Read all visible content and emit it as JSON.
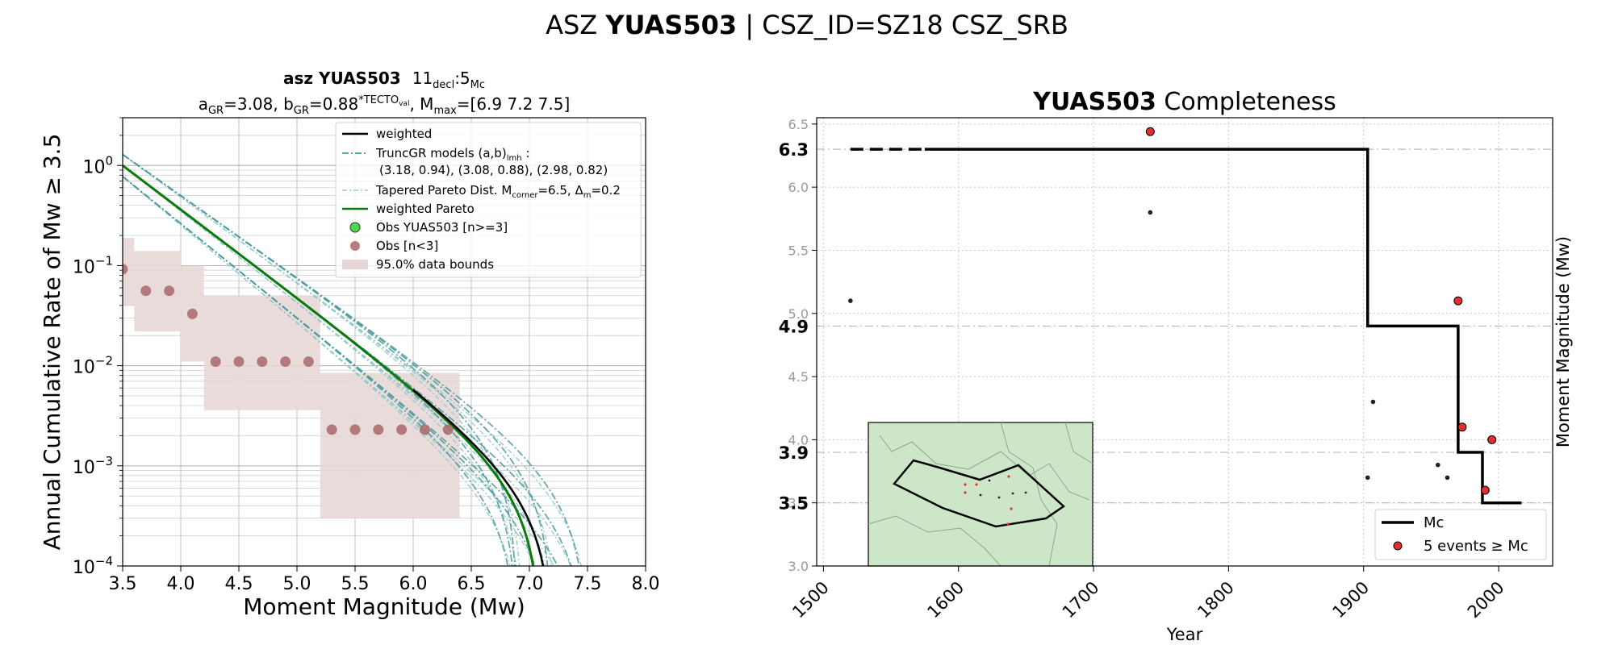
{
  "figure": {
    "title_prefix": "ASZ ",
    "title_bold": "YUAS503",
    "title_suffix": " | CSZ_ID=SZ18 CSZ_SRB"
  },
  "colors": {
    "weighted": "#000000",
    "trunc": "#4a9a9a",
    "tapered": "#90cbcb",
    "pareto": "#0a7a0a",
    "obs_ge3": "#4cd84c",
    "obs_lt3": "#a86868",
    "band": "#e8d6d6",
    "event_red": "#e03030",
    "map_fill": "#cde6c8",
    "map_border": "#8aa88a"
  },
  "chart_data": [
    {
      "type": "line",
      "title_bold": "asz YUAS503",
      "title_rest_main": "11",
      "title_rest_sub": "decl",
      "title_rest_mid": ":5",
      "title_rest_sub2": "Mc",
      "subtitle": "aGR=3.08,  bGR=0.88*TECTOval, Mmax=[6.9 7.2 7.5]",
      "xlabel": "Moment Magnitude (Mw)",
      "ylabel": "Annual Cumulative Rate of Mw  ≥  3.5",
      "xlim": [
        3.5,
        8.0
      ],
      "ylim": [
        0.0001,
        3
      ],
      "yscale": "log",
      "xticks": [
        "3.5",
        "4.0",
        "4.5",
        "5.0",
        "5.5",
        "6.0",
        "6.5",
        "7.0",
        "7.5",
        "8.0"
      ],
      "yticks": [
        {
          "base": "10",
          "exp": "0",
          "value": 1
        },
        {
          "base": "10",
          "exp": "−1",
          "value": 0.1
        },
        {
          "base": "10",
          "exp": "−2",
          "value": 0.01
        },
        {
          "base": "10",
          "exp": "−3",
          "value": 0.001
        },
        {
          "base": "10",
          "exp": "−4",
          "value": 0.0001
        }
      ],
      "legend": {
        "position": "top-right",
        "entries": [
          {
            "label": "weighted",
            "kind": "solid-black"
          },
          {
            "label": "TruncGR models (a,b)lmh :",
            "line2": "(3.18, 0.94), (3.08, 0.88), (2.98, 0.82)",
            "kind": "dashdot-teal"
          },
          {
            "label": "Tapered Pareto Dist. Mcorner=6.5, Δm=0.2",
            "kind": "dashdot-light"
          },
          {
            "label": "weighted Pareto",
            "kind": "solid-green"
          },
          {
            "label": "Obs YUAS503 [n>=3]",
            "kind": "marker-green"
          },
          {
            "label": "Obs [n<3]",
            "kind": "marker-brown"
          },
          {
            "label": "95.0% data bounds",
            "kind": "patch"
          }
        ]
      },
      "models": {
        "trunc_gr": [
          {
            "a": 3.18,
            "b": 0.94,
            "mmax": [
              6.9,
              7.2,
              7.5
            ]
          },
          {
            "a": 3.08,
            "b": 0.88,
            "mmax": [
              6.9,
              7.2,
              7.5
            ]
          },
          {
            "a": 2.98,
            "b": 0.82,
            "mmax": [
              6.9,
              7.2,
              7.5
            ]
          }
        ],
        "weighted": {
          "a": 3.08,
          "b": 0.88,
          "mmax": 7.2
        },
        "pareto": {
          "a": 3.08,
          "b": 0.88,
          "mmax": 7.1
        },
        "tapered": {
          "m_corner": 6.5,
          "delta_m": 0.2
        }
      },
      "observed": {
        "x": [
          3.5,
          3.7,
          3.9,
          4.1,
          4.3,
          4.5,
          4.7,
          4.9,
          5.1,
          5.3,
          5.5,
          5.7,
          5.9,
          6.1,
          6.3
        ],
        "y": [
          0.092,
          0.056,
          0.056,
          0.033,
          0.011,
          0.011,
          0.011,
          0.011,
          0.011,
          0.0023,
          0.0023,
          0.0023,
          0.0023,
          0.0023,
          0.0023
        ]
      },
      "bounds_band": {
        "x": [
          3.5,
          3.7,
          3.9,
          4.1,
          4.3,
          4.5,
          4.7,
          4.9,
          5.1,
          5.3,
          5.5,
          5.7,
          5.9,
          6.1,
          6.3
        ],
        "upper": [
          0.19,
          0.14,
          0.14,
          0.1,
          0.05,
          0.05,
          0.05,
          0.05,
          0.05,
          0.0085,
          0.0085,
          0.0085,
          0.0085,
          0.0085,
          0.0085
        ],
        "lower": [
          0.04,
          0.022,
          0.022,
          0.011,
          0.0036,
          0.0036,
          0.0036,
          0.0036,
          0.0036,
          0.0003,
          0.0003,
          0.0003,
          0.0003,
          0.0003,
          0.0003
        ]
      }
    },
    {
      "type": "scatter",
      "title_bold": "YUAS503",
      "title_rest": " Completeness",
      "xlabel": "Year",
      "ylabel": "Moment Magnitude (Mw)",
      "xlim": [
        1495,
        2040
      ],
      "ylim": [
        3.0,
        6.55
      ],
      "xticks": [
        "1500",
        "1600",
        "1700",
        "1800",
        "1900",
        "2000"
      ],
      "yticks": [
        "3.0",
        "3.5",
        "4.0",
        "4.5",
        "5.0",
        "5.5",
        "6.0",
        "6.5"
      ],
      "mc_levels": [
        "6.3",
        "4.9",
        "3.9",
        "3.5"
      ],
      "mc_step": {
        "years": [
          1520,
          1903,
          1903,
          1970,
          1970,
          1988,
          1988,
          2017
        ],
        "mw": [
          6.3,
          6.3,
          4.9,
          4.9,
          3.9,
          3.9,
          3.5,
          3.5
        ],
        "dashed_until_year": 1575
      },
      "events_red": {
        "year": [
          1742,
          1970,
          1973,
          1990,
          1995
        ],
        "mw": [
          6.44,
          5.1,
          4.1,
          3.6,
          4.0
        ]
      },
      "events_black": {
        "year": [
          1520,
          1742,
          1903,
          1907,
          1955,
          1962
        ],
        "mw": [
          5.1,
          5.8,
          3.7,
          4.3,
          3.8,
          3.7
        ]
      },
      "legend": {
        "position": "bottom-right",
        "entries": [
          {
            "label": "Mc",
            "kind": "line"
          },
          {
            "label": "5 events  ≥  Mc",
            "kind": "marker-red"
          }
        ]
      }
    }
  ]
}
